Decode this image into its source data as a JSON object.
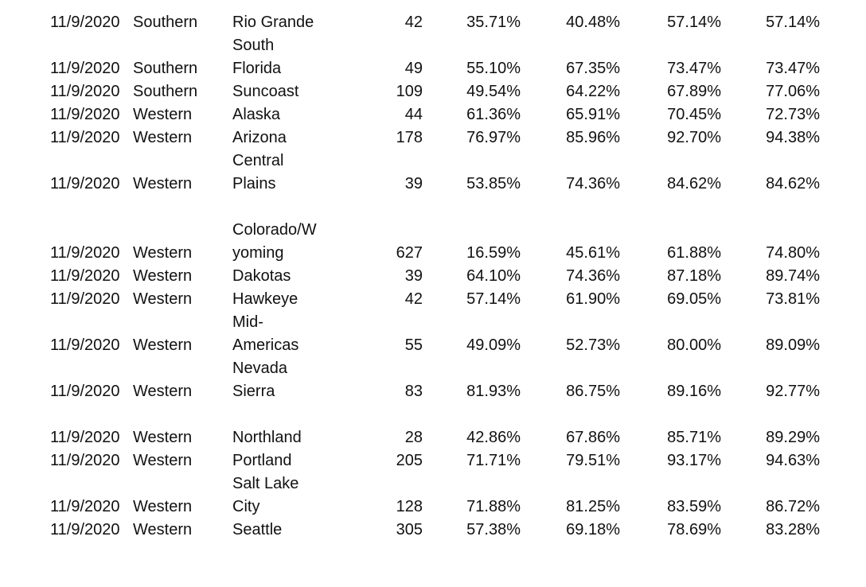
{
  "page": {
    "background_color": "#ffffff",
    "text_color": "#111111"
  },
  "table": {
    "lines": [
      {
        "date": "11/9/2020",
        "region": "Southern",
        "name": "Rio Grande",
        "count": "42",
        "pcts": [
          "35.71%",
          "40.48%",
          "57.14%",
          "57.14%"
        ]
      },
      {
        "name": "South"
      },
      {
        "date": "11/9/2020",
        "region": "Southern",
        "name": "Florida",
        "count": "49",
        "pcts": [
          "55.10%",
          "67.35%",
          "73.47%",
          "73.47%"
        ]
      },
      {
        "date": "11/9/2020",
        "region": "Southern",
        "name": "Suncoast",
        "count": "109",
        "pcts": [
          "49.54%",
          "64.22%",
          "67.89%",
          "77.06%"
        ]
      },
      {
        "date": "11/9/2020",
        "region": "Western",
        "name": "Alaska",
        "count": "44",
        "pcts": [
          "61.36%",
          "65.91%",
          "70.45%",
          "72.73%"
        ]
      },
      {
        "date": "11/9/2020",
        "region": "Western",
        "name": "Arizona",
        "count": "178",
        "pcts": [
          "76.97%",
          "85.96%",
          "92.70%",
          "94.38%"
        ]
      },
      {
        "name": "Central"
      },
      {
        "date": "11/9/2020",
        "region": "Western",
        "name": "Plains",
        "count": "39",
        "pcts": [
          "53.85%",
          "74.36%",
          "84.62%",
          "84.62%"
        ]
      },
      {},
      {
        "name": "Colorado/W"
      },
      {
        "date": "11/9/2020",
        "region": "Western",
        "name": "yoming",
        "count": "627",
        "pcts": [
          "16.59%",
          "45.61%",
          "61.88%",
          "74.80%"
        ]
      },
      {
        "date": "11/9/2020",
        "region": "Western",
        "name": "Dakotas",
        "count": "39",
        "pcts": [
          "64.10%",
          "74.36%",
          "87.18%",
          "89.74%"
        ]
      },
      {
        "date": "11/9/2020",
        "region": "Western",
        "name": "Hawkeye",
        "count": "42",
        "pcts": [
          "57.14%",
          "61.90%",
          "69.05%",
          "73.81%"
        ]
      },
      {
        "name": "Mid-"
      },
      {
        "date": "11/9/2020",
        "region": "Western",
        "name": "Americas",
        "count": "55",
        "pcts": [
          "49.09%",
          "52.73%",
          "80.00%",
          "89.09%"
        ]
      },
      {
        "name": "Nevada"
      },
      {
        "date": "11/9/2020",
        "region": "Western",
        "name": "Sierra",
        "count": "83",
        "pcts": [
          "81.93%",
          "86.75%",
          "89.16%",
          "92.77%"
        ]
      },
      {},
      {
        "date": "11/9/2020",
        "region": "Western",
        "name": "Northland",
        "count": "28",
        "pcts": [
          "42.86%",
          "67.86%",
          "85.71%",
          "89.29%"
        ]
      },
      {
        "date": "11/9/2020",
        "region": "Western",
        "name": "Portland",
        "count": "205",
        "pcts": [
          "71.71%",
          "79.51%",
          "93.17%",
          "94.63%"
        ]
      },
      {
        "name": "Salt Lake"
      },
      {
        "date": "11/9/2020",
        "region": "Western",
        "name": "City",
        "count": "128",
        "pcts": [
          "71.88%",
          "81.25%",
          "83.59%",
          "86.72%"
        ]
      },
      {
        "date": "11/9/2020",
        "region": "Western",
        "name": "Seattle",
        "count": "305",
        "pcts": [
          "57.38%",
          "69.18%",
          "78.69%",
          "83.28%"
        ]
      }
    ]
  }
}
